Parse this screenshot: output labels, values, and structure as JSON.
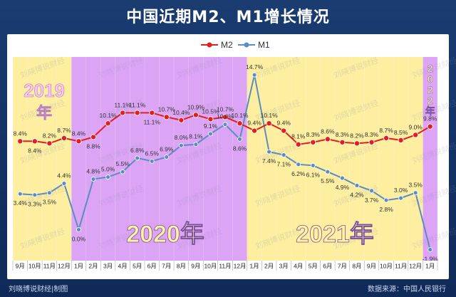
{
  "title": "中国近期M2、M1增长情况",
  "watermark": "刘晓博说财经",
  "footer": {
    "left": "刘晓博说财经|制图",
    "right": "数据来源：中国人民银行"
  },
  "year_labels": {
    "y2019": "2019年",
    "y2020": "2020年",
    "y2021": "2021年",
    "y2022": "2022年"
  },
  "colors": {
    "m2": "#e02020",
    "m1": "#5b8cc2",
    "yellow_band": "#fdeea0",
    "purple_band": "#dba4f5",
    "year_2019": "#f9c8f0",
    "year_2020": "#fff3a0"
  },
  "chart_data": {
    "type": "line",
    "categories": [
      "9月",
      "10月",
      "11月",
      "12月",
      "1月",
      "2月",
      "3月",
      "4月",
      "5月",
      "6月",
      "7月",
      "8月",
      "9月",
      "10月",
      "11月",
      "12月",
      "1月",
      "2月",
      "3月",
      "4月",
      "5月",
      "6月",
      "7月",
      "8月",
      "9月",
      "10月",
      "11月",
      "12月",
      "1月"
    ],
    "series": [
      {
        "name": "M2",
        "values": [
          8.4,
          8.4,
          8.2,
          8.7,
          8.4,
          8.8,
          10.1,
          11.1,
          11.1,
          11.1,
          10.7,
          10.4,
          10.9,
          10.5,
          10.7,
          10.1,
          9.4,
          10.1,
          9.4,
          8.1,
          8.3,
          8.6,
          8.3,
          8.2,
          8.3,
          8.7,
          8.5,
          9.0,
          9.8
        ]
      },
      {
        "name": "M1",
        "values": [
          3.4,
          3.3,
          3.5,
          4.4,
          0.0,
          4.8,
          5.0,
          5.5,
          6.8,
          6.5,
          6.9,
          8.0,
          8.1,
          9.1,
          10.0,
          8.6,
          14.7,
          7.4,
          7.1,
          6.2,
          6.1,
          5.5,
          4.9,
          4.2,
          3.7,
          2.8,
          3.0,
          3.5,
          -1.9
        ]
      }
    ],
    "bands": [
      {
        "from": 0,
        "to": 3,
        "color": "yellow"
      },
      {
        "from": 4,
        "to": 15,
        "color": "purple"
      },
      {
        "from": 16,
        "to": 27,
        "color": "yellow"
      },
      {
        "from": 28,
        "to": 28,
        "color": "purple"
      }
    ],
    "ylim": [
      -2,
      16
    ]
  }
}
